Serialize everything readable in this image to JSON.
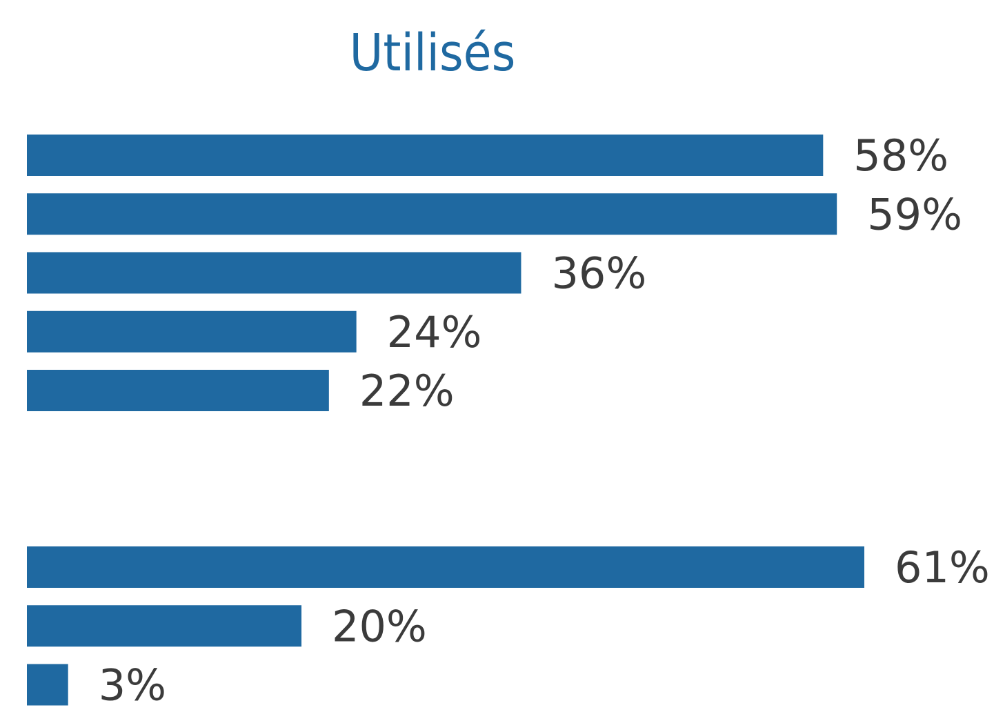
{
  "chart_data": {
    "type": "bar",
    "orientation": "horizontal",
    "title": "Utilisés",
    "colors": {
      "bar": "#1f69a1",
      "title": "#1f69a1",
      "label": "#3b3b3b"
    },
    "xlim": [
      0,
      61
    ],
    "grid": false,
    "legend": "none",
    "groups": [
      {
        "values": [
          58,
          59,
          36,
          24,
          22
        ],
        "labels": [
          "58%",
          "59%",
          "36%",
          "24%",
          "22%"
        ]
      },
      {
        "values": [
          61,
          20,
          3
        ],
        "labels": [
          "61%",
          "20%",
          "3%"
        ]
      }
    ]
  }
}
